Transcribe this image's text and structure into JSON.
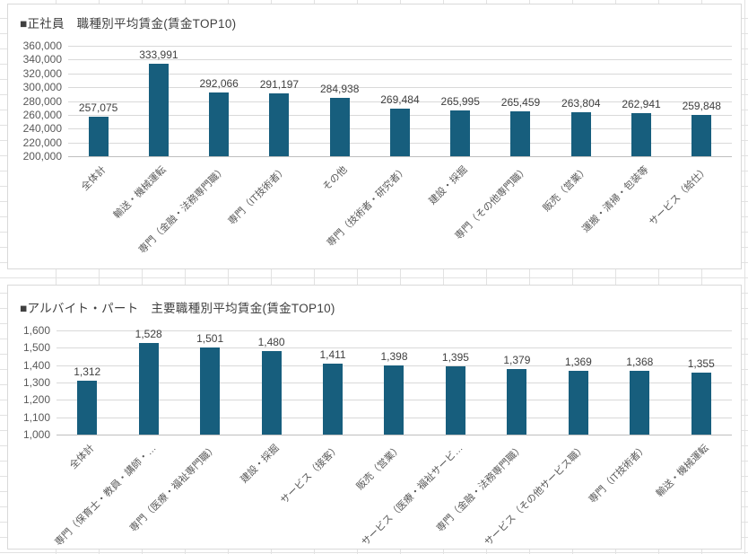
{
  "colors": {
    "bar_fill": "#175E7D",
    "grid_line": "#D9D9D9",
    "axis_line": "#BFBFBF",
    "chart_border": "#D9D9D9",
    "chart_bg": "#FFFFFF",
    "title_text": "#404040",
    "value_text": "#404040",
    "tick_text": "#595959",
    "sheet_line": "#E2E2E2"
  },
  "chart_data": [
    {
      "type": "bar",
      "title": "■正社員　職種別平均賃金(賃金TOP10)",
      "categories": [
        "全体計",
        "輸送・機械運転",
        "専門（金融・法務専門職）",
        "専門（IT技術者）",
        "その他",
        "専門（技術者・研究者）",
        "建設・採掘",
        "専門（その他専門職）",
        "販売（営業）",
        "運搬・清掃・包装等",
        "サービス（給仕）"
      ],
      "values": [
        257075,
        333991,
        292066,
        291197,
        284938,
        269484,
        265995,
        265459,
        263804,
        262941,
        259848
      ],
      "data_labels": [
        "257,075",
        "333,991",
        "292,066",
        "291,197",
        "284,938",
        "269,484",
        "265,995",
        "265,459",
        "263,804",
        "262,941",
        "259,848"
      ],
      "xlabel": "",
      "ylabel": "",
      "ylim": [
        200000,
        360000
      ],
      "ytick_step": 20000,
      "y_ticks": [
        "360,000",
        "340,000",
        "320,000",
        "300,000",
        "280,000",
        "260,000",
        "240,000",
        "220,000",
        "200,000"
      ],
      "grid": true,
      "legend": "none"
    },
    {
      "type": "bar",
      "title": "■アルバイト・パート　主要職種別平均賃金(賃金TOP10)",
      "categories": [
        "全体計",
        "専門（保育士・教員・講師・…",
        "専門（医療・福祉専門職）",
        "建設・採掘",
        "サービス（接客）",
        "販売（営業）",
        "サービス（医療・福祉サービ…",
        "専門（金融・法務専門職）",
        "サービス（その他サービス職）",
        "専門（IT技術者）",
        "輸送・機械運転"
      ],
      "values": [
        1312,
        1528,
        1501,
        1480,
        1411,
        1398,
        1395,
        1379,
        1369,
        1368,
        1355
      ],
      "data_labels": [
        "1,312",
        "1,528",
        "1,501",
        "1,480",
        "1,411",
        "1,398",
        "1,395",
        "1,379",
        "1,369",
        "1,368",
        "1,355"
      ],
      "xlabel": "",
      "ylabel": "",
      "ylim": [
        1000,
        1600
      ],
      "ytick_step": 100,
      "y_ticks": [
        "1,600",
        "1,500",
        "1,400",
        "1,300",
        "1,200",
        "1,100",
        "1,000"
      ],
      "grid": true,
      "legend": "none"
    }
  ]
}
